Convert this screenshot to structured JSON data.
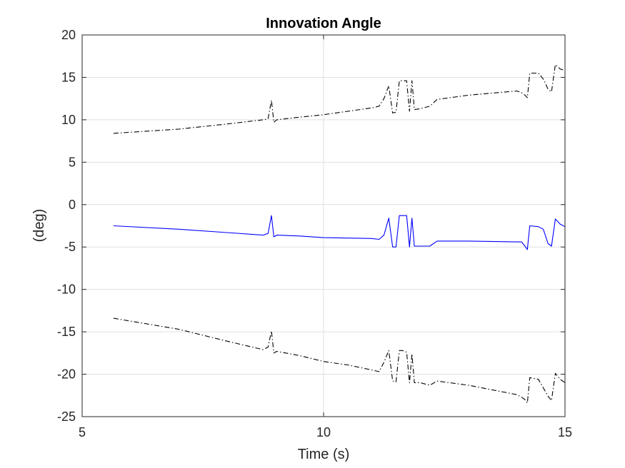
{
  "chart_data": {
    "type": "line",
    "title": "Innovation Angle",
    "xlabel": "Time (s)",
    "ylabel": "(deg)",
    "xlim": [
      5,
      15
    ],
    "ylim": [
      -25,
      20
    ],
    "xticks": [
      "5",
      "10",
      "15"
    ],
    "yticks": [
      "20",
      "15",
      "10",
      "5",
      "0",
      "-5",
      "-10",
      "-15",
      "-20",
      "-25"
    ],
    "grid": true,
    "series": [
      {
        "color": "#0000ff",
        "style": "solid",
        "points": [
          [
            5.65,
            -2.5
          ],
          [
            7.0,
            -2.9
          ],
          [
            8.0,
            -3.3
          ],
          [
            8.75,
            -3.6
          ],
          [
            8.85,
            -3.4
          ],
          [
            8.92,
            -1.3
          ],
          [
            8.97,
            -3.8
          ],
          [
            9.03,
            -3.6
          ],
          [
            9.5,
            -3.7
          ],
          [
            10.0,
            -3.9
          ],
          [
            10.5,
            -3.95
          ],
          [
            11.0,
            -4.0
          ],
          [
            11.15,
            -4.1
          ],
          [
            11.25,
            -3.6
          ],
          [
            11.35,
            -1.6
          ],
          [
            11.43,
            -5.0
          ],
          [
            11.5,
            -5.0
          ],
          [
            11.57,
            -1.3
          ],
          [
            11.63,
            -1.3
          ],
          [
            11.72,
            -1.3
          ],
          [
            11.78,
            -5.0
          ],
          [
            11.83,
            -1.6
          ],
          [
            11.88,
            -4.9
          ],
          [
            12.0,
            -4.9
          ],
          [
            12.2,
            -4.9
          ],
          [
            12.35,
            -4.3
          ],
          [
            13.0,
            -4.3
          ],
          [
            14.0,
            -4.4
          ],
          [
            14.1,
            -4.4
          ],
          [
            14.17,
            -4.9
          ],
          [
            14.22,
            -5.3
          ],
          [
            14.27,
            -2.5
          ],
          [
            14.45,
            -2.6
          ],
          [
            14.55,
            -2.9
          ],
          [
            14.65,
            -4.6
          ],
          [
            14.72,
            -4.9
          ],
          [
            14.8,
            -1.7
          ],
          [
            14.9,
            -2.3
          ],
          [
            15.0,
            -2.6
          ]
        ]
      },
      {
        "color": "#000000",
        "style": "dashdot",
        "points": [
          [
            5.65,
            8.4
          ],
          [
            7.0,
            8.9
          ],
          [
            8.0,
            9.5
          ],
          [
            8.75,
            10.0
          ],
          [
            8.85,
            10.1
          ],
          [
            8.92,
            12.3
          ],
          [
            8.97,
            9.7
          ],
          [
            9.03,
            10.0
          ],
          [
            9.5,
            10.3
          ],
          [
            10.0,
            10.6
          ],
          [
            10.5,
            11.0
          ],
          [
            11.0,
            11.4
          ],
          [
            11.15,
            11.6
          ],
          [
            11.25,
            12.5
          ],
          [
            11.35,
            14.0
          ],
          [
            11.43,
            10.8
          ],
          [
            11.5,
            10.9
          ],
          [
            11.57,
            14.6
          ],
          [
            11.63,
            14.6
          ],
          [
            11.72,
            14.6
          ],
          [
            11.78,
            11.0
          ],
          [
            11.83,
            14.6
          ],
          [
            11.88,
            11.2
          ],
          [
            12.0,
            11.3
          ],
          [
            12.2,
            11.6
          ],
          [
            12.35,
            12.4
          ],
          [
            13.0,
            12.9
          ],
          [
            14.0,
            13.4
          ],
          [
            14.1,
            13.2
          ],
          [
            14.17,
            12.9
          ],
          [
            14.22,
            12.6
          ],
          [
            14.27,
            15.5
          ],
          [
            14.45,
            15.5
          ],
          [
            14.55,
            14.8
          ],
          [
            14.65,
            13.6
          ],
          [
            14.72,
            13.3
          ],
          [
            14.8,
            16.5
          ],
          [
            14.9,
            16.0
          ],
          [
            15.0,
            15.8
          ]
        ]
      },
      {
        "color": "#000000",
        "style": "dashdot",
        "points": [
          [
            5.65,
            -13.4
          ],
          [
            7.0,
            -14.7
          ],
          [
            8.0,
            -16.1
          ],
          [
            8.75,
            -17.1
          ],
          [
            8.85,
            -16.8
          ],
          [
            8.92,
            -14.9
          ],
          [
            8.97,
            -17.5
          ],
          [
            9.03,
            -17.3
          ],
          [
            9.5,
            -17.8
          ],
          [
            10.0,
            -18.5
          ],
          [
            10.5,
            -18.9
          ],
          [
            11.0,
            -19.5
          ],
          [
            11.15,
            -19.7
          ],
          [
            11.25,
            -18.6
          ],
          [
            11.35,
            -17.2
          ],
          [
            11.43,
            -20.8
          ],
          [
            11.5,
            -20.9
          ],
          [
            11.57,
            -17.2
          ],
          [
            11.63,
            -17.2
          ],
          [
            11.72,
            -17.4
          ],
          [
            11.78,
            -21.0
          ],
          [
            11.83,
            -17.6
          ],
          [
            11.88,
            -21.0
          ],
          [
            12.0,
            -21.0
          ],
          [
            12.2,
            -21.3
          ],
          [
            12.35,
            -20.8
          ],
          [
            13.0,
            -21.3
          ],
          [
            14.0,
            -22.4
          ],
          [
            14.1,
            -22.7
          ],
          [
            14.17,
            -23.0
          ],
          [
            14.22,
            -23.4
          ],
          [
            14.27,
            -20.4
          ],
          [
            14.45,
            -20.6
          ],
          [
            14.55,
            -21.6
          ],
          [
            14.65,
            -22.6
          ],
          [
            14.72,
            -23.1
          ],
          [
            14.8,
            -19.9
          ],
          [
            14.9,
            -20.6
          ],
          [
            15.0,
            -21.0
          ]
        ]
      }
    ]
  }
}
